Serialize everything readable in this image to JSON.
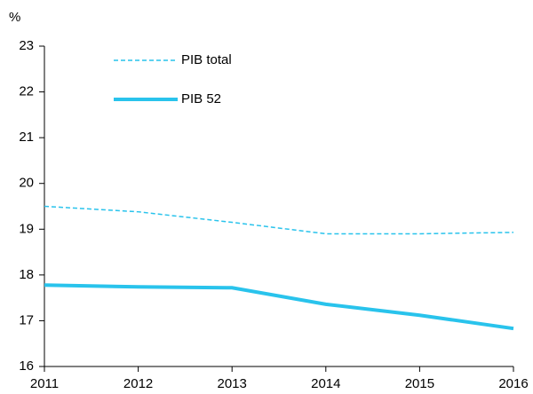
{
  "chart_data": {
    "type": "line",
    "y_label": "%",
    "x": [
      2011,
      2012,
      2013,
      2014,
      2015,
      2016
    ],
    "xlim": [
      2011,
      2016
    ],
    "xticks": [
      2011,
      2012,
      2013,
      2014,
      2015,
      2016
    ],
    "ylim": [
      16,
      23
    ],
    "yticks": [
      16,
      17,
      18,
      19,
      20,
      21,
      22,
      23
    ],
    "grid": false,
    "legend": "upper left",
    "series": [
      {
        "name": "PIB total",
        "color": "#29c3ec",
        "line_style": "dashed",
        "values": [
          19.5,
          19.38,
          19.15,
          18.9,
          18.9,
          18.93
        ]
      },
      {
        "name": "PIB 52",
        "color": "#29c3ec",
        "line_style": "solid",
        "values": [
          17.78,
          17.74,
          17.72,
          17.36,
          17.12,
          16.83
        ]
      }
    ]
  }
}
